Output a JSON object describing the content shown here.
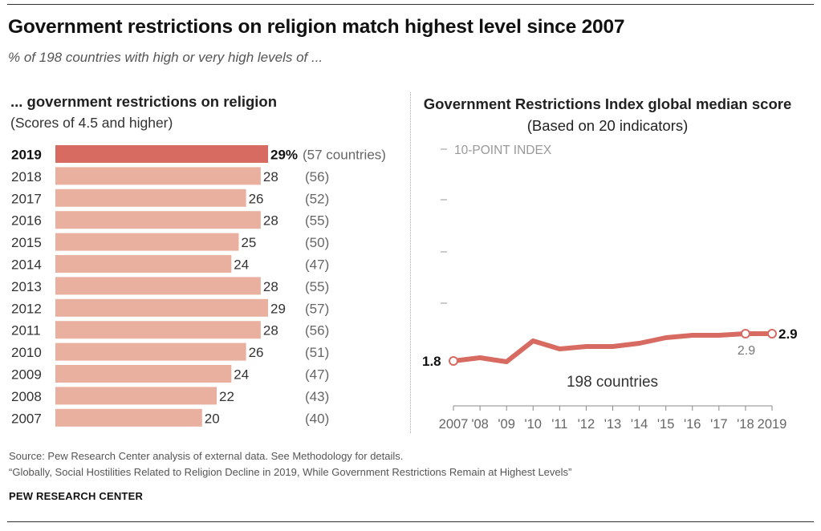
{
  "title": "Government restrictions on religion match highest level since 2007",
  "subtitle": "% of 198 countries with high or very high levels of ...",
  "left_panel": {
    "title": "... government restrictions on religion",
    "subtitle": "(Scores of 4.5 and higher)"
  },
  "right_panel": {
    "title_bold": "Government Restrictions Index global median score",
    "title_regular": "(Based on 20 indicators)"
  },
  "colors": {
    "bar_highlight": "#d76b62",
    "bar_normal": "#e9b0a0",
    "line": "#d76b62",
    "axis": "#888888"
  },
  "chart_data": [
    {
      "type": "bar",
      "orientation": "horizontal",
      "categories": [
        "2019",
        "2018",
        "2017",
        "2016",
        "2015",
        "2014",
        "2013",
        "2012",
        "2011",
        "2010",
        "2009",
        "2008",
        "2007"
      ],
      "values": [
        29,
        28,
        26,
        28,
        25,
        24,
        28,
        29,
        28,
        26,
        24,
        22,
        20
      ],
      "value_labels": [
        "29%",
        "28",
        "26",
        "28",
        "25",
        "24",
        "28",
        "29",
        "28",
        "26",
        "24",
        "22",
        "20"
      ],
      "counts": [
        "(57 countries)",
        "(56)",
        "(52)",
        "(55)",
        "(50)",
        "(47)",
        "(55)",
        "(57)",
        "(56)",
        "(51)",
        "(47)",
        "(43)",
        "(40)"
      ],
      "highlight": "2019",
      "xlim": [
        0,
        30
      ]
    },
    {
      "type": "line",
      "x": [
        "2007",
        "'08",
        "'09",
        "'10",
        "'11",
        "'12",
        "'13",
        "'14",
        "'15",
        "'16",
        "'17",
        "'18",
        "2019"
      ],
      "values": [
        1.8,
        1.9,
        1.8,
        2.4,
        2.2,
        2.3,
        2.3,
        2.4,
        2.6,
        2.7,
        2.7,
        2.9,
        2.9
      ],
      "ylim": [
        0,
        10
      ],
      "y_ticks": [
        2,
        4,
        6,
        8,
        10
      ],
      "ylabel": "10-POINT INDEX",
      "annotations": {
        "start_label": "1.8",
        "end_label": "2.9",
        "label_2018": "2.9",
        "series_label": "198 countries"
      },
      "markers_at": [
        0,
        11,
        12
      ]
    }
  ],
  "footer": {
    "source": "Source: Pew Research Center analysis of external data. See Methodology for details.",
    "report": "“Globally, Social Hostilities Related to Religion Decline in 2019, While Government Restrictions Remain at Highest Levels”",
    "brand": "PEW RESEARCH CENTER"
  }
}
